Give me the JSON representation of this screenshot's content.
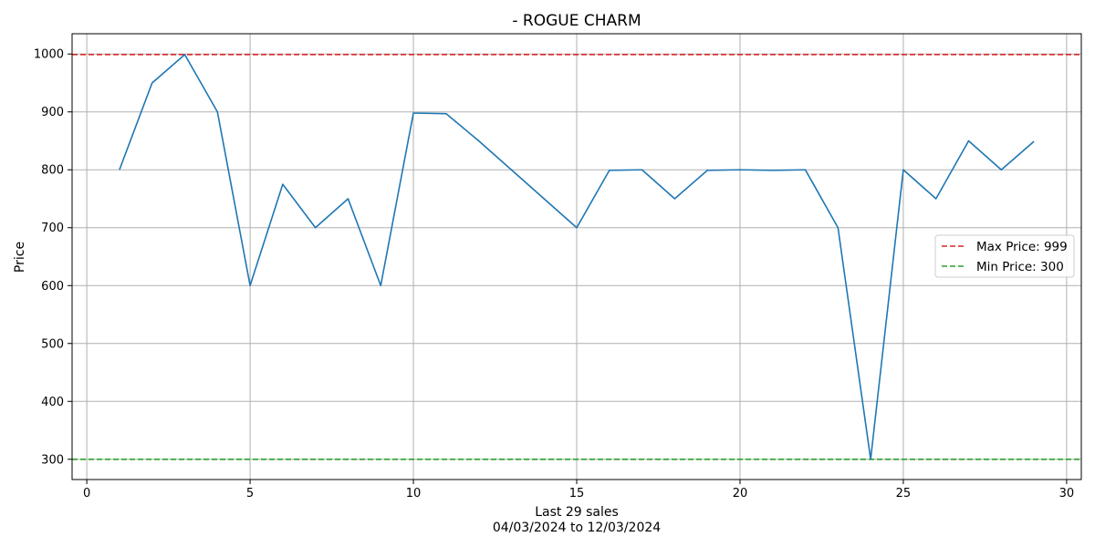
{
  "chart_data": {
    "type": "line",
    "title": "- ROGUE CHARM",
    "xlabel_line1": "Last 29 sales",
    "xlabel_line2": "04/03/2024 to 12/03/2024",
    "ylabel": "Price",
    "xlim": [
      -0.45,
      30.45
    ],
    "ylim": [
      265,
      1035
    ],
    "xticks": [
      0,
      5,
      10,
      15,
      20,
      25,
      30
    ],
    "yticks": [
      300,
      400,
      500,
      600,
      700,
      800,
      900,
      1000
    ],
    "grid": true,
    "legend_position": "center-right",
    "series": [
      {
        "color": "#1f77b4",
        "x": [
          1,
          2,
          3,
          4,
          5,
          6,
          7,
          8,
          9,
          10,
          11,
          12,
          13,
          14,
          15,
          16,
          17,
          18,
          19,
          20,
          21,
          22,
          23,
          24,
          25,
          26,
          27,
          28,
          29
        ],
        "values": [
          800,
          950,
          999,
          900,
          600,
          775,
          700,
          750,
          600,
          898,
          897,
          850,
          800,
          750,
          700,
          799,
          800,
          750,
          799,
          800,
          799,
          800,
          700,
          300,
          800,
          750,
          850,
          800,
          849
        ]
      }
    ],
    "reference_lines": [
      {
        "name": "Max Price: 999",
        "value": 999,
        "color": "#d62728",
        "style": "dashed"
      },
      {
        "name": "Min Price: 300",
        "value": 300,
        "color": "#2ca02c",
        "style": "dashed"
      }
    ]
  }
}
